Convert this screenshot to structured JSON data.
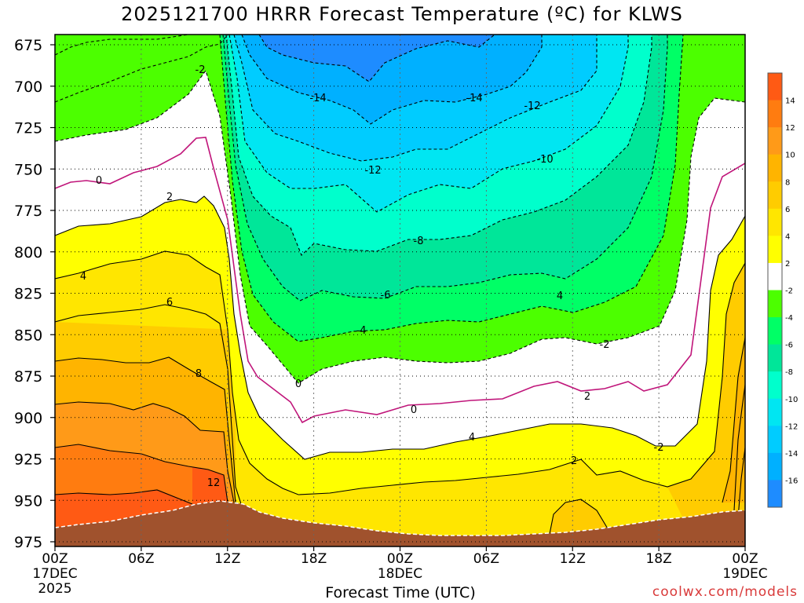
{
  "chart_data": {
    "type": "contour",
    "title": "2025121700 HRRR Forecast Temperature (ºC) for KLWS",
    "xlabel": "Forecast Time (UTC)",
    "credit": "coolwx.com/models",
    "y_ticks": [
      "675",
      "700",
      "725",
      "750",
      "775",
      "800",
      "825",
      "850",
      "875",
      "900",
      "925",
      "950",
      "975"
    ],
    "ylim": [
      975,
      670
    ],
    "x_ticks": [
      {
        "label": "00Z",
        "sub": "17DEC",
        "year": "2025"
      },
      {
        "label": "06Z",
        "sub": "",
        "year": ""
      },
      {
        "label": "12Z",
        "sub": "",
        "year": ""
      },
      {
        "label": "18Z",
        "sub": "",
        "year": ""
      },
      {
        "label": "00Z",
        "sub": "18DEC",
        "year": ""
      },
      {
        "label": "06Z",
        "sub": "",
        "year": ""
      },
      {
        "label": "12Z",
        "sub": "",
        "year": ""
      },
      {
        "label": "18Z",
        "sub": "",
        "year": ""
      },
      {
        "label": "00Z",
        "sub": "19DEC",
        "year": ""
      }
    ],
    "xlim_hours": [
      0,
      48
    ],
    "colorbar_ticks": [
      "14",
      "12",
      "10",
      "8",
      "6",
      "4",
      "2",
      "-2",
      "-4",
      "-6",
      "-8",
      "-10",
      "-12",
      "-14",
      "-16"
    ],
    "colorbar_colors": [
      "#ff5a14",
      "#ff7c10",
      "#ff9a18",
      "#ffb400",
      "#ffcc00",
      "#ffe600",
      "#ffff00",
      "#ffffff",
      "#4cff00",
      "#00ff66",
      "#00e699",
      "#00ffcc",
      "#00e6f2",
      "#00ccff",
      "#00b0ff",
      "#1e8cff"
    ],
    "fill_colors": {
      "warm_14": "#ff5a14",
      "warm_12": "#ff7c10",
      "warm_10": "#ff9a18",
      "warm_8": "#ffb400",
      "warm_6": "#ffcc00",
      "warm_4": "#ffe600",
      "warm_2": "#ffff00",
      "neutral": "#ffffff",
      "cold_2": "#4cff00",
      "cold_4": "#00ff66",
      "cold_6": "#00e699",
      "cold_8": "#00ffcc",
      "cold_10": "#00e6f2",
      "cold_12": "#00ccff",
      "cold_14": "#00b0ff",
      "cold_16": "#1e8cff",
      "terrain": "#a0522d",
      "zero_line": "#c0157a"
    },
    "contour_labels": [
      "-2",
      "0",
      "2",
      "4",
      "6",
      "8",
      "12",
      "-14",
      "-12",
      "-10",
      "-8",
      "-6",
      "-4",
      "4",
      "-2",
      "0",
      "0",
      "2",
      "4",
      "2",
      "-14",
      "-12",
      "-2"
    ]
  }
}
